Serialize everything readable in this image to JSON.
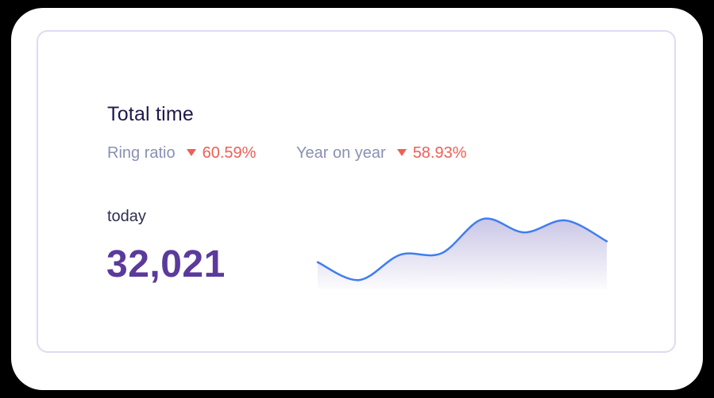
{
  "card": {
    "title": "Total time",
    "metrics": [
      {
        "label": "Ring ratio",
        "value": "60.59%",
        "trend": "down"
      },
      {
        "label": "Year on year",
        "value": "58.93%",
        "trend": "down"
      }
    ],
    "period_label": "today",
    "total_value": "32,021"
  },
  "colors": {
    "title": "#1d1b4b",
    "metric_label": "#8a90b4",
    "trend_down": "#ef5f55",
    "big_value": "#5b3a9c",
    "sparkline_line": "#3e7ef0",
    "sparkline_fill": "#c7c3e4",
    "card_border": "#dcdcf4"
  },
  "sparkline": {
    "type": "area",
    "values": [
      28,
      4,
      38,
      40,
      86,
      68,
      84,
      56
    ]
  }
}
